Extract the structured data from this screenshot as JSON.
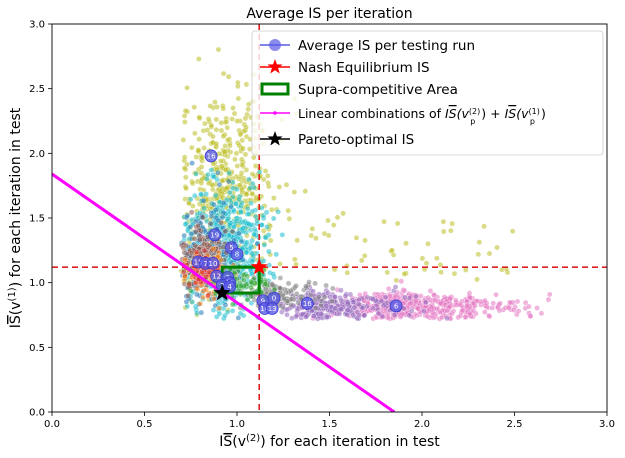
{
  "chart_data": {
    "type": "scatter",
    "title": "Average IS per iteration",
    "xlabel_parts": {
      "pre": "I",
      "bar": "S",
      "mid": "(v",
      "sup": "(2)",
      "post": ") for each iteration in test"
    },
    "ylabel_parts": {
      "pre": "I",
      "bar": "S",
      "mid": "(v",
      "sup": "(1)",
      "post": ") for each iteration in test"
    },
    "xlim": [
      0.0,
      3.0
    ],
    "ylim": [
      0.0,
      3.0
    ],
    "xticks": [
      "0.0",
      "0.5",
      "1.0",
      "1.5",
      "2.0",
      "2.5",
      "3.0"
    ],
    "yticks": [
      "0.0",
      "0.5",
      "1.0",
      "1.5",
      "2.0",
      "2.5",
      "3.0"
    ],
    "xtick_values": [
      0.0,
      0.5,
      1.0,
      1.5,
      2.0,
      2.5,
      3.0
    ],
    "ytick_values": [
      0.0,
      0.5,
      1.0,
      1.5,
      2.0,
      2.5,
      3.0
    ],
    "legend": {
      "position": "top-right",
      "entries": [
        {
          "label": "Average IS per testing run",
          "kind": "avg"
        },
        {
          "label": "Nash Equilibrium IS",
          "kind": "nash"
        },
        {
          "label": "Supra-competitive Area",
          "kind": "area"
        },
        {
          "label_rich": "Linear combinations of IS̄(v_p^(2)) + IS̄(v_p^(1))",
          "kind": "line"
        },
        {
          "label": "Pareto-optimal IS",
          "kind": "pareto"
        }
      ],
      "line_label_parts": {
        "pre": "Linear combinations of ",
        "a_pre": "I",
        "a_bar": "S",
        "a_mid": "(v",
        "a_sub": "p",
        "a_sup": "(2)",
        "plus": ") + ",
        "b_pre": "I",
        "b_bar": "S",
        "b_mid": "(v",
        "b_sub": "p",
        "b_sup": "(1)",
        "end": ")"
      }
    },
    "nash_point": {
      "x": 1.12,
      "y": 1.12
    },
    "nash_lines": {
      "x": 1.12,
      "y": 1.12
    },
    "supra_area": {
      "x0": 0.92,
      "y0": 0.92,
      "x1": 1.12,
      "y1": 1.12
    },
    "pareto_point": {
      "x": 0.92,
      "y": 0.92
    },
    "linear_combination_line": {
      "x": [
        0.0,
        1.85
      ],
      "y": [
        1.84,
        0.0
      ]
    },
    "average_runs": [
      {
        "label": "16",
        "x": 0.86,
        "y": 1.98
      },
      {
        "label": "19",
        "x": 0.88,
        "y": 1.37
      },
      {
        "label": "5",
        "x": 0.97,
        "y": 1.27
      },
      {
        "label": "8",
        "x": 1.0,
        "y": 1.22
      },
      {
        "label": "15",
        "x": 0.79,
        "y": 1.16
      },
      {
        "label": "7",
        "x": 0.83,
        "y": 1.15
      },
      {
        "label": "10",
        "x": 0.87,
        "y": 1.15
      },
      {
        "label": "12",
        "x": 0.89,
        "y": 1.05
      },
      {
        "label": "3",
        "x": 0.95,
        "y": 1.04
      },
      {
        "label": "11",
        "x": 0.96,
        "y": 1.0
      },
      {
        "label": "2",
        "x": 0.92,
        "y": 0.98
      },
      {
        "label": "4",
        "x": 0.96,
        "y": 0.97
      },
      {
        "label": "9",
        "x": 1.14,
        "y": 0.86
      },
      {
        "label": "0",
        "x": 1.2,
        "y": 0.88
      },
      {
        "label": "14",
        "x": 1.15,
        "y": 0.8
      },
      {
        "label": "13",
        "x": 1.19,
        "y": 0.8
      },
      {
        "label": "16",
        "x": 1.38,
        "y": 0.84
      },
      {
        "label": "6",
        "x": 1.86,
        "y": 0.82
      }
    ],
    "scatter_clusters": [
      {
        "name": "olive",
        "color": "#bcbd22",
        "n": 520,
        "cx": 0.95,
        "cy": 1.75,
        "sx": 0.12,
        "sy": 0.35,
        "tail": true
      },
      {
        "name": "cyan",
        "color": "#17becf",
        "n": 520,
        "cx": 0.95,
        "cy": 1.3,
        "sx": 0.12,
        "sy": 0.25,
        "tail": false
      },
      {
        "name": "pink",
        "color": "#e377c2",
        "n": 520,
        "cx": 1.75,
        "cy": 0.82,
        "sx": 0.35,
        "sy": 0.05,
        "tail": false
      },
      {
        "name": "purple",
        "color": "#9467bd",
        "n": 260,
        "cx": 1.35,
        "cy": 0.82,
        "sx": 0.25,
        "sy": 0.06,
        "tail": false
      },
      {
        "name": "blue",
        "color": "#1f77b4",
        "n": 220,
        "cx": 0.85,
        "cy": 1.2,
        "sx": 0.08,
        "sy": 0.2,
        "tail": false
      },
      {
        "name": "brown",
        "color": "#8c564b",
        "n": 180,
        "cx": 0.82,
        "cy": 1.2,
        "sx": 0.06,
        "sy": 0.12,
        "tail": false
      },
      {
        "name": "gray",
        "color": "#7f7f7f",
        "n": 140,
        "cx": 1.15,
        "cy": 0.9,
        "sx": 0.15,
        "sy": 0.06,
        "tail": false
      },
      {
        "name": "orange",
        "color": "#ff7f0e",
        "n": 90,
        "cx": 0.85,
        "cy": 1.05,
        "sx": 0.06,
        "sy": 0.08,
        "tail": false
      },
      {
        "name": "green",
        "color": "#2ca02c",
        "n": 90,
        "cx": 1.0,
        "cy": 1.0,
        "sx": 0.1,
        "sy": 0.06,
        "tail": false
      },
      {
        "name": "red",
        "color": "#d62728",
        "n": 60,
        "cx": 0.82,
        "cy": 1.1,
        "sx": 0.05,
        "sy": 0.06,
        "tail": false
      }
    ],
    "colors": {
      "average": "#5a5ae6",
      "nash": "#ff0000",
      "nash_lines": "#e02020",
      "area": "#008000",
      "line": "#ff00ff",
      "pareto": "#000000"
    }
  }
}
